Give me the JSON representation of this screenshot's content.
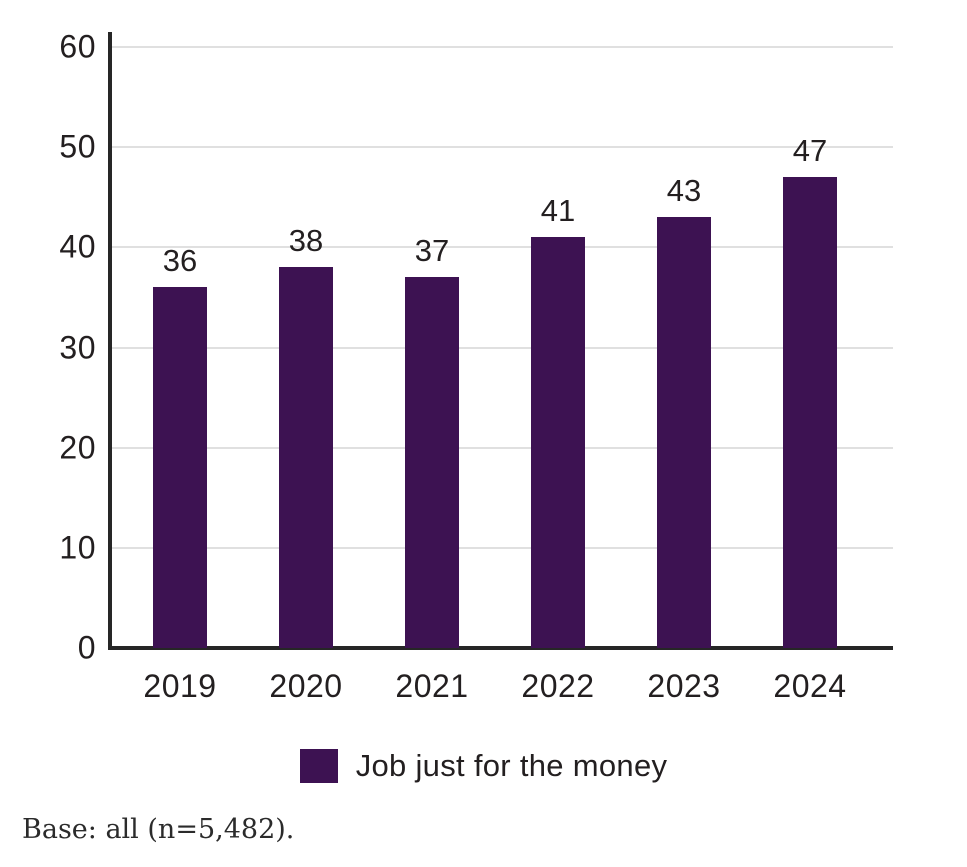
{
  "chart_data": {
    "type": "bar",
    "categories": [
      "2019",
      "2020",
      "2021",
      "2022",
      "2023",
      "2024"
    ],
    "values": [
      36,
      38,
      37,
      41,
      43,
      47
    ],
    "series": [
      {
        "name": "Job just for the money",
        "values": [
          36,
          38,
          37,
          41,
          43,
          47
        ]
      }
    ],
    "title": "",
    "xlabel": "",
    "ylabel": "",
    "ylim": [
      0,
      60
    ],
    "yticks": [
      0,
      10,
      20,
      30,
      40,
      50,
      60
    ],
    "grid": true,
    "legend_position": "bottom",
    "data_labels": [
      "36",
      "38",
      "37",
      "41",
      "43",
      "47"
    ]
  },
  "legend": {
    "label": "Job just for the money"
  },
  "footer": {
    "text": "Base: all (n=5,482)."
  },
  "colors": {
    "bar": "#3d1252",
    "axis": "#262626",
    "gridline": "#e0e0e0",
    "text": "#231f20"
  }
}
